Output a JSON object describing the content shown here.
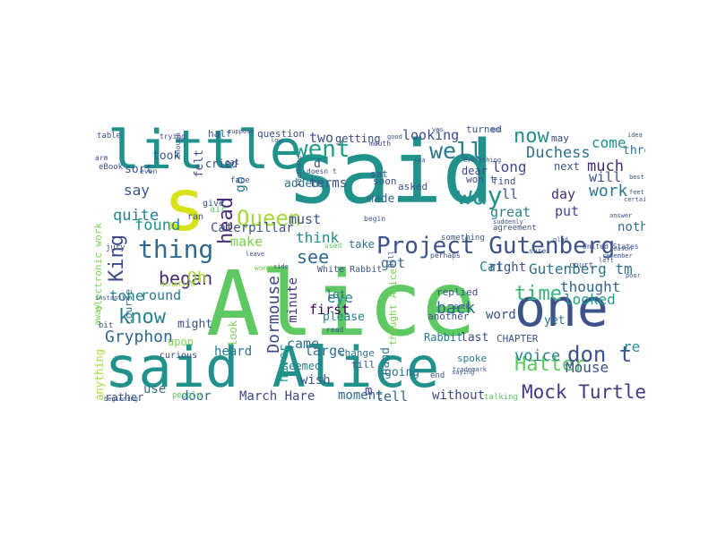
{
  "word_cloud": {
    "words": [
      {
        "text": "said",
        "color": "#21918c"
      },
      {
        "text": "Alice",
        "color": "#5ec962"
      },
      {
        "text": "said Alice",
        "color": "#21918c"
      },
      {
        "text": "little",
        "color": "#21918c"
      },
      {
        "text": "s",
        "color": "#d8e219"
      },
      {
        "text": "one",
        "color": "#3b528b"
      },
      {
        "text": "Project Gutenberg",
        "color": "#3b528b"
      },
      {
        "text": "thing",
        "color": "#31688e"
      },
      {
        "text": "Queen",
        "color": "#a5db36"
      },
      {
        "text": "went",
        "color": "#1f9e89"
      },
      {
        "text": "see",
        "color": "#31688e"
      },
      {
        "text": "well",
        "color": "#2a788e"
      },
      {
        "text": "know",
        "color": "#26828e"
      },
      {
        "text": "time",
        "color": "#35b779"
      },
      {
        "text": "way",
        "color": "#21918c"
      },
      {
        "text": "head",
        "color": "#472c7a"
      },
      {
        "text": "King",
        "color": "#3e4989"
      },
      {
        "text": "Hatter",
        "color": "#5ec962"
      },
      {
        "text": "Mock Turtle",
        "color": "#443983"
      },
      {
        "text": "now",
        "color": "#21918c"
      },
      {
        "text": "Duchess",
        "color": "#2c718e"
      },
      {
        "text": "don t",
        "color": "#3b528b"
      },
      {
        "text": "began",
        "color": "#482878"
      },
      {
        "text": "Gryphon",
        "color": "#31688e"
      },
      {
        "text": "Dormouse",
        "color": "#3e4989"
      },
      {
        "text": "Gutenberg tm",
        "color": "#2c718e"
      },
      {
        "text": "thought",
        "color": "#31688e"
      },
      {
        "text": "looked",
        "color": "#1f9e89"
      },
      {
        "text": "back",
        "color": "#31688e"
      },
      {
        "text": "voice",
        "color": "#26828e"
      },
      {
        "text": "Mouse",
        "color": "#3b528b"
      },
      {
        "text": "much",
        "color": "#472c7a"
      },
      {
        "text": "work",
        "color": "#2a788e"
      },
      {
        "text": "come",
        "color": "#21918c"
      },
      {
        "text": "long",
        "color": "#3e4989"
      },
      {
        "text": "must",
        "color": "#3b528b"
      },
      {
        "text": "quite",
        "color": "#26828e"
      },
      {
        "text": "found",
        "color": "#21918c"
      },
      {
        "text": "round",
        "color": "#2a788e"
      },
      {
        "text": "think",
        "color": "#21918c"
      },
      {
        "text": "make",
        "color": "#7ad151"
      },
      {
        "text": "say",
        "color": "#3b528b"
      },
      {
        "text": "two",
        "color": "#3b528b"
      },
      {
        "text": "looking",
        "color": "#3e4989"
      },
      {
        "text": "Cat",
        "color": "#26828e"
      },
      {
        "text": "got",
        "color": "#31688e"
      },
      {
        "text": "eye",
        "color": "#26828e"
      },
      {
        "text": "first",
        "color": "#440154"
      },
      {
        "text": "minute",
        "color": "#46337e"
      },
      {
        "text": "Oh",
        "color": "#a5db36"
      },
      {
        "text": "tone",
        "color": "#26828e"
      },
      {
        "text": "large",
        "color": "#2c718e"
      },
      {
        "text": "came",
        "color": "#2c718e"
      },
      {
        "text": "never",
        "color": "#1f9e89"
      },
      {
        "text": "go",
        "color": "#2a788e"
      },
      {
        "text": "re",
        "color": "#21918c"
      },
      {
        "text": "ll",
        "color": "#3b528b"
      },
      {
        "text": "day",
        "color": "#482878"
      },
      {
        "text": "put",
        "color": "#3e4989"
      },
      {
        "text": "great",
        "color": "#26828e"
      },
      {
        "text": "right",
        "color": "#3b528b"
      },
      {
        "text": "nothing",
        "color": "#2c718e"
      },
      {
        "text": "will",
        "color": "#3b528b"
      },
      {
        "text": "word",
        "color": "#3b528b"
      },
      {
        "text": "tell",
        "color": "#31688e"
      },
      {
        "text": "March Hare",
        "color": "#3e4989"
      },
      {
        "text": "door",
        "color": "#31688e"
      },
      {
        "text": "without",
        "color": "#3e4989"
      },
      {
        "text": "moment",
        "color": "#31688e"
      },
      {
        "text": "wish",
        "color": "#3b528b"
      },
      {
        "text": "hand",
        "color": "#2a788e"
      },
      {
        "text": "going",
        "color": "#2c718e"
      },
      {
        "text": "seemed",
        "color": "#26828e"
      },
      {
        "text": "use",
        "color": "#2c718e"
      },
      {
        "text": "heard",
        "color": "#2a788e"
      },
      {
        "text": "rather",
        "color": "#3b528b"
      },
      {
        "text": "m",
        "color": "#3e4989"
      },
      {
        "text": "Caterpillar",
        "color": "#3b528b"
      },
      {
        "text": "made",
        "color": "#31688e"
      },
      {
        "text": "terms",
        "color": "#3b528b"
      },
      {
        "text": "added",
        "color": "#2a788e"
      },
      {
        "text": "getting",
        "color": "#3e4989"
      },
      {
        "text": "let",
        "color": "#2c718e"
      },
      {
        "text": "please",
        "color": "#26828e"
      },
      {
        "text": "last",
        "color": "#3e4989"
      },
      {
        "text": "yet",
        "color": "#2c718e"
      },
      {
        "text": "Rabbit",
        "color": "#2a788e"
      },
      {
        "text": "CHAPTER",
        "color": "#3b528b"
      },
      {
        "text": "might",
        "color": "#3b528b"
      },
      {
        "text": "took",
        "color": "#3b528b"
      },
      {
        "text": "felt",
        "color": "#3e4989"
      },
      {
        "text": "sort",
        "color": "#3b528b"
      },
      {
        "text": "may",
        "color": "#3e4989"
      },
      {
        "text": "turned",
        "color": "#3b528b"
      },
      {
        "text": "three",
        "color": "#2c718e"
      },
      {
        "text": "question",
        "color": "#3e4989"
      },
      {
        "text": "half",
        "color": "#3b528b"
      },
      {
        "text": "take",
        "color": "#2c718e"
      },
      {
        "text": "find",
        "color": "#3b528b"
      },
      {
        "text": "dear",
        "color": "#3e4989"
      },
      {
        "text": "spoke",
        "color": "#2a788e"
      },
      {
        "text": "cried",
        "color": "#3e4989"
      },
      {
        "text": "thought Alice",
        "color": "#7ad151"
      },
      {
        "text": "replied",
        "color": "#3b528b"
      },
      {
        "text": "another",
        "color": "#3b528b"
      },
      {
        "text": "upon",
        "color": "#7ad151"
      },
      {
        "text": "next",
        "color": "#3b528b"
      },
      {
        "text": "curious",
        "color": "#3e4989"
      },
      {
        "text": "look",
        "color": "#7ad151"
      },
      {
        "text": "change",
        "color": "#2a788e"
      },
      {
        "text": "till",
        "color": "#3b528b"
      },
      {
        "text": "asked",
        "color": "#3b528b"
      },
      {
        "text": "sat",
        "color": "#3b528b"
      },
      {
        "text": "won t",
        "color": "#3e4989"
      },
      {
        "text": "soon",
        "color": "#3b528b"
      },
      {
        "text": "course",
        "color": "#2c718e"
      },
      {
        "text": "agreement",
        "color": "#3b528b"
      },
      {
        "text": "anything",
        "color": "#a5db36"
      },
      {
        "text": "White Rabbit",
        "color": "#3b528b"
      },
      {
        "text": "electronic work",
        "color": "#7ad151"
      },
      {
        "text": "eBook",
        "color": "#3b528b"
      },
      {
        "text": "table",
        "color": "#3b528b"
      },
      {
        "text": "talking",
        "color": "#5ec962"
      },
      {
        "text": "people",
        "color": "#5ec962"
      },
      {
        "text": "away",
        "color": "#7ad151"
      },
      {
        "text": "end",
        "color": "#3b528b"
      },
      {
        "text": "give",
        "color": "#3b528b"
      },
      {
        "text": "court",
        "color": "#3b528b"
      },
      {
        "text": "trying",
        "color": "#3e4989"
      },
      {
        "text": "even",
        "color": "#3b528b"
      },
      {
        "text": "ran",
        "color": "#3b528b"
      },
      {
        "text": "bit",
        "color": "#3b528b"
      },
      {
        "text": "jury",
        "color": "#3e4989"
      },
      {
        "text": "air",
        "color": "#5ec962"
      },
      {
        "text": "face",
        "color": "#3b528b"
      },
      {
        "text": "eat",
        "color": "#3b528b"
      },
      {
        "text": "arm",
        "color": "#3b528b"
      },
      {
        "text": "mouth",
        "color": "#3e4989"
      },
      {
        "text": "something",
        "color": "#3b528b"
      },
      {
        "text": "doesn t",
        "color": "#3b528b"
      },
      {
        "text": "perhaps",
        "color": "#3e4989"
      },
      {
        "text": "read",
        "color": "#3b528b"
      },
      {
        "text": "enough",
        "color": "#3b528b"
      },
      {
        "text": "Footnote",
        "color": "#3e4989"
      },
      {
        "text": "idea",
        "color": "#3b528b"
      },
      {
        "text": "Bill",
        "color": "#3b528b"
      },
      {
        "text": "sure",
        "color": "#3b528b"
      },
      {
        "text": "United States",
        "color": "#3b528b"
      },
      {
        "text": "beginning",
        "color": "#3b528b"
      },
      {
        "text": "suppose",
        "color": "#3b528b"
      },
      {
        "text": "wonder",
        "color": "#7ad151"
      },
      {
        "text": "d",
        "color": "#3b528b"
      },
      {
        "text": "begin",
        "color": "#3b528b"
      },
      {
        "text": "instantly",
        "color": "#3b528b"
      },
      {
        "text": "trademark",
        "color": "#3b528b"
      },
      {
        "text": "suddenly",
        "color": "#3b528b"
      },
      {
        "text": "reason",
        "color": "#3b528b"
      },
      {
        "text": "used",
        "color": "#5ec962"
      },
      {
        "text": "leave",
        "color": "#3b528b"
      },
      {
        "text": "donation",
        "color": "#a5db36"
      },
      {
        "text": "everything",
        "color": "#3b528b"
      },
      {
        "text": "saying",
        "color": "#3b528b"
      },
      {
        "text": "side",
        "color": "#3b528b"
      },
      {
        "text": "mad",
        "color": "#3b528b"
      },
      {
        "text": "remember",
        "color": "#3b528b"
      },
      {
        "text": "good",
        "color": "#3b528b"
      },
      {
        "text": "best",
        "color": "#3b528b"
      },
      {
        "text": "feet",
        "color": "#3b528b"
      },
      {
        "text": "Duck",
        "color": "#3b528b"
      },
      {
        "text": "answer",
        "color": "#3b528b"
      },
      {
        "text": "certainly",
        "color": "#3b528b"
      },
      {
        "text": "left",
        "color": "#3b528b"
      },
      {
        "text": "yes",
        "color": "#3b528b"
      },
      {
        "text": "sea",
        "color": "#3b528b"
      },
      {
        "text": "low",
        "color": "#3b528b"
      },
      {
        "text": "glad",
        "color": "#3b528b"
      },
      {
        "text": "poor",
        "color": "#3b528b"
      }
    ]
  }
}
